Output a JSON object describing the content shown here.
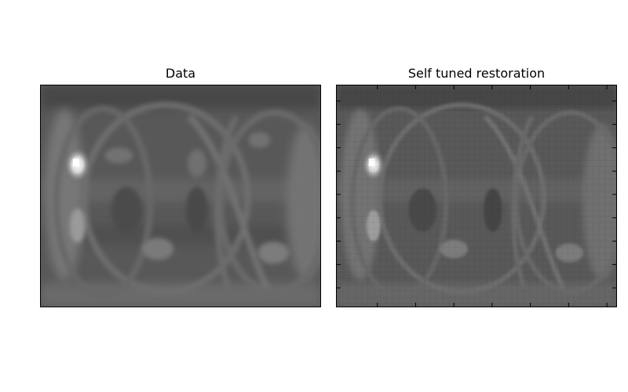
{
  "figure": {
    "panels": [
      {
        "title": "Data"
      },
      {
        "title": "Self tuned restoration"
      }
    ],
    "colormap": "gray",
    "colors": {
      "background": "#ffffff",
      "frame": "#000000",
      "image_base": "#5c5c5c",
      "bright_spot": "#ffffff"
    }
  }
}
